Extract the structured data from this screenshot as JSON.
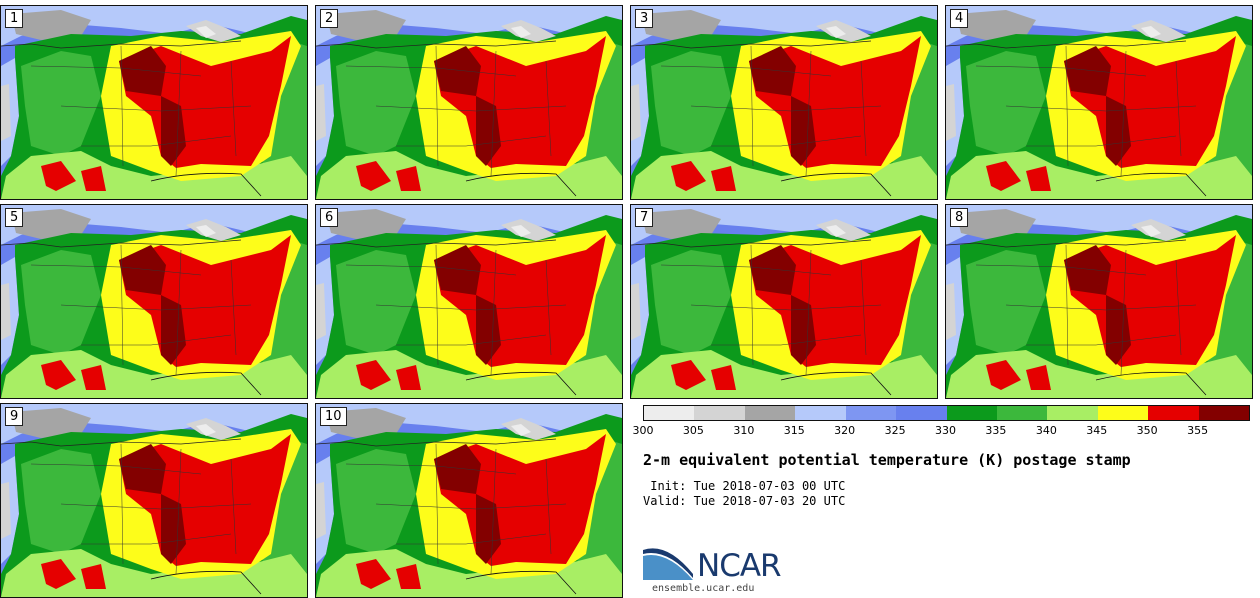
{
  "panels": [
    {
      "label": "1"
    },
    {
      "label": "2"
    },
    {
      "label": "3"
    },
    {
      "label": "4"
    },
    {
      "label": "5"
    },
    {
      "label": "6"
    },
    {
      "label": "7"
    },
    {
      "label": "8"
    },
    {
      "label": "9"
    },
    {
      "label": "10"
    }
  ],
  "colorbar": {
    "colors": [
      "#ededed",
      "#d4d4d4",
      "#a5a5a5",
      "#b5c9fa",
      "#7e96f2",
      "#6880ee",
      "#0c9a1c",
      "#3cb83c",
      "#a8ee64",
      "#fdfd1a",
      "#e50000",
      "#830000"
    ],
    "ticks": [
      "300",
      "305",
      "310",
      "315",
      "320",
      "325",
      "330",
      "335",
      "340",
      "345",
      "350",
      "355"
    ]
  },
  "title": "2-m equivalent potential temperature (K) postage stamp",
  "init": " Init: Tue 2018-07-03 00 UTC",
  "valid": "Valid: Tue 2018-07-03 20 UTC",
  "logo": {
    "text": "NCAR",
    "colors": {
      "blue": "#1a3a6e",
      "sky": "#4a90c8"
    }
  },
  "website": "ensemble.ucar.edu"
}
